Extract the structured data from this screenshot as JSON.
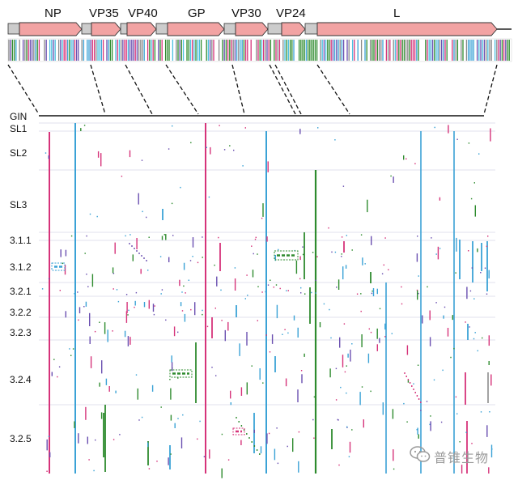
{
  "genes": [
    {
      "label": "NP"
    },
    {
      "label": "VP35"
    },
    {
      "label": "VP40"
    },
    {
      "label": "GP"
    },
    {
      "label": "VP30"
    },
    {
      "label": "VP24"
    },
    {
      "label": "L"
    }
  ],
  "rows": [
    {
      "label": "GIN"
    },
    {
      "label": "SL1"
    },
    {
      "label": "SL2"
    },
    {
      "label": "SL3"
    },
    {
      "label": "3.1.1"
    },
    {
      "label": "3.1.2"
    },
    {
      "label": "3.2.1"
    },
    {
      "label": "3.2.2"
    },
    {
      "label": "3.2.3"
    },
    {
      "label": "3.2.4"
    },
    {
      "label": "3.2.5"
    }
  ],
  "colors": {
    "gene_box": "#f2a3a3",
    "gene_border": "#333333",
    "noncoding": "#cccccc",
    "magenta": "#d6337a",
    "cyan": "#3aa2d6",
    "green": "#2e8b2e",
    "purple": "#6a4fb0",
    "grid": "#d8d8e6"
  },
  "watermark": {
    "text": "普锥生物",
    "icon": "wechat-icon"
  }
}
